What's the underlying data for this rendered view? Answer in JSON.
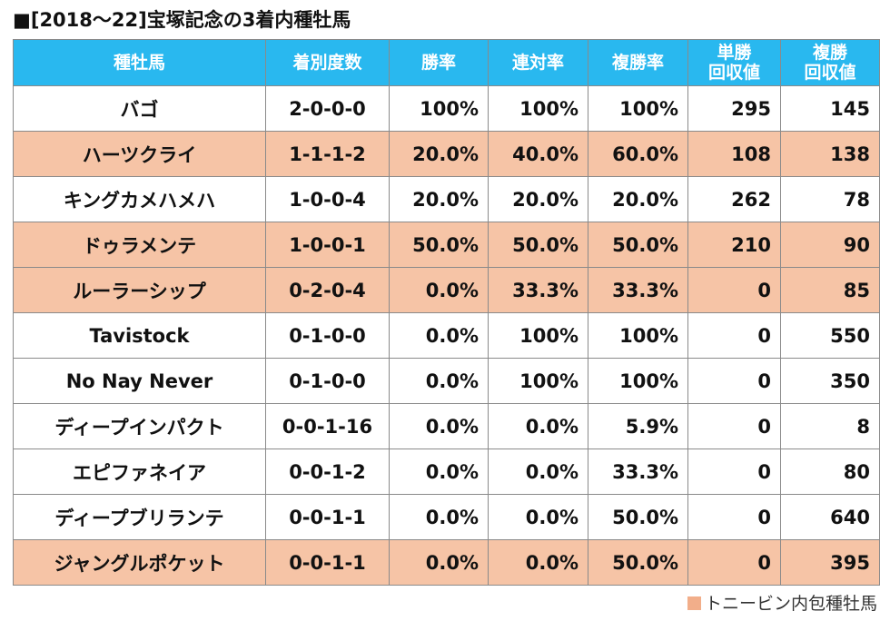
{
  "title": "■[2018～22]宝塚記念の3着内種牡馬",
  "colors": {
    "header_bg": "#29b8ef",
    "highlight_bg": "#f6c4a6",
    "legend_swatch": "#f2ae8a"
  },
  "table": {
    "headers": [
      "種牡馬",
      "着別度数",
      "勝率",
      "連対率",
      "複勝率",
      "単勝\n回収値",
      "複勝\n回収値"
    ],
    "rows": [
      {
        "name": "バゴ",
        "record": "2-0-0-0",
        "win": "100%",
        "top2": "100%",
        "top3": "100%",
        "win_roi": "295",
        "place_roi": "145",
        "highlight": false
      },
      {
        "name": "ハーツクライ",
        "record": "1-1-1-2",
        "win": "20.0%",
        "top2": "40.0%",
        "top3": "60.0%",
        "win_roi": "108",
        "place_roi": "138",
        "highlight": true
      },
      {
        "name": "キングカメハメハ",
        "record": "1-0-0-4",
        "win": "20.0%",
        "top2": "20.0%",
        "top3": "20.0%",
        "win_roi": "262",
        "place_roi": "78",
        "highlight": false
      },
      {
        "name": "ドゥラメンテ",
        "record": "1-0-0-1",
        "win": "50.0%",
        "top2": "50.0%",
        "top3": "50.0%",
        "win_roi": "210",
        "place_roi": "90",
        "highlight": true
      },
      {
        "name": "ルーラーシップ",
        "record": "0-2-0-4",
        "win": "0.0%",
        "top2": "33.3%",
        "top3": "33.3%",
        "win_roi": "0",
        "place_roi": "85",
        "highlight": true
      },
      {
        "name": "Tavistock",
        "record": "0-1-0-0",
        "win": "0.0%",
        "top2": "100%",
        "top3": "100%",
        "win_roi": "0",
        "place_roi": "550",
        "highlight": false
      },
      {
        "name": "No Nay Never",
        "record": "0-1-0-0",
        "win": "0.0%",
        "top2": "100%",
        "top3": "100%",
        "win_roi": "0",
        "place_roi": "350",
        "highlight": false
      },
      {
        "name": "ディープインパクト",
        "record": "0-0-1-16",
        "win": "0.0%",
        "top2": "0.0%",
        "top3": "5.9%",
        "win_roi": "0",
        "place_roi": "8",
        "highlight": false
      },
      {
        "name": "エピファネイア",
        "record": "0-0-1-2",
        "win": "0.0%",
        "top2": "0.0%",
        "top3": "33.3%",
        "win_roi": "0",
        "place_roi": "80",
        "highlight": false
      },
      {
        "name": "ディープブリランテ",
        "record": "0-0-1-1",
        "win": "0.0%",
        "top2": "0.0%",
        "top3": "50.0%",
        "win_roi": "0",
        "place_roi": "640",
        "highlight": false
      },
      {
        "name": "ジャングルポケット",
        "record": "0-0-1-1",
        "win": "0.0%",
        "top2": "0.0%",
        "top3": "50.0%",
        "win_roi": "0",
        "place_roi": "395",
        "highlight": true
      }
    ]
  },
  "legend": {
    "swatch": "■",
    "label": "トニービン内包種牡馬"
  }
}
